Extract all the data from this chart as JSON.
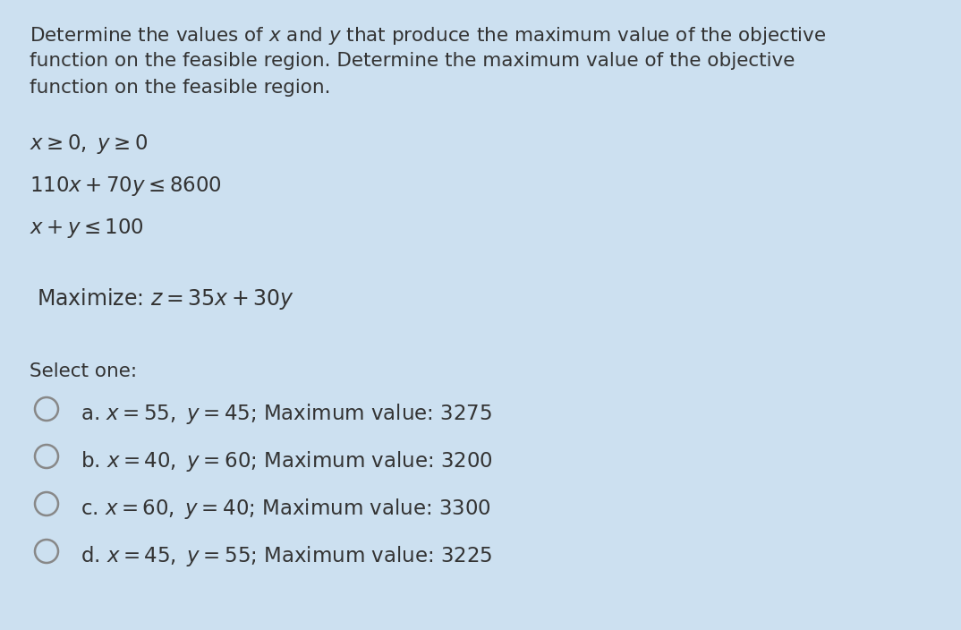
{
  "background_color": "#cce0f0",
  "text_color": "#333333",
  "circle_color": "#888888",
  "circle_fill": "#cce0f0",
  "title_lines": [
    "Determine the values of $x$ and $y$ that produce the maximum value of the objective",
    "function on the feasible region. Determine the maximum value of the objective",
    "function on the feasible region."
  ],
  "constraint1": "$x \\geq 0,\\ y \\geq 0$",
  "constraint2": "$110x + 70y \\leq 8600$",
  "constraint3": "$x + y \\leq 100$",
  "objective": "Maximize: $z = 35x + 30y$",
  "select_one": "Select one:",
  "options": [
    "a. $x = 55,\\ y = 45$; Maximum value: 3275",
    "b. $x = 40,\\ y = 60$; Maximum value: 3200",
    "c. $x = 60,\\ y = 40$; Maximum value: 3300",
    "d. $x = 45,\\ y = 55$; Maximum value: 3225"
  ],
  "title_fontsize": 15.5,
  "body_fontsize": 16.5,
  "option_fontsize": 16.5,
  "select_fontsize": 15.5
}
